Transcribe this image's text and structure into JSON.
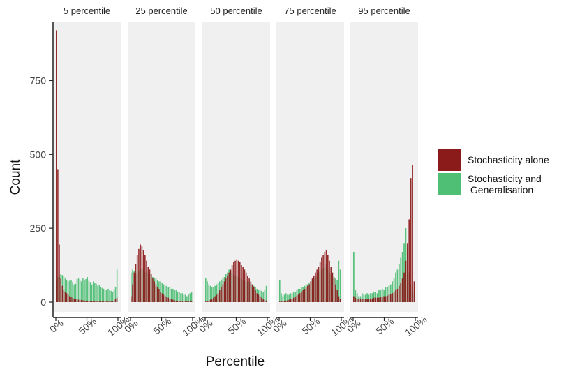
{
  "chart_data": {
    "type": "bar",
    "layout": "faceted histogram (5 panels, overlaid series)",
    "ylabel": "Count",
    "xlabel": "Percentile",
    "ylim": [
      0,
      940
    ],
    "y_ticks": [
      0,
      250,
      500,
      750
    ],
    "x_tick_labels": [
      "0%",
      "50%",
      "100%"
    ],
    "grid": "off",
    "panel_background": "#f0f0f0",
    "legend_position": "right",
    "series": [
      {
        "name": "Stochasticity alone",
        "color": "#8b1a1a"
      },
      {
        "name": "Stochasticity and\n Generalisation",
        "color": "#4fbf76"
      }
    ],
    "panels": [
      {
        "title": "5 percentile",
        "Stochasticity alone": [
          920,
          450,
          195,
          80,
          55,
          40,
          35,
          30,
          25,
          20,
          18,
          15,
          12,
          10,
          10,
          8,
          8,
          7,
          6,
          5,
          5,
          4,
          4,
          3,
          3,
          3,
          2,
          2,
          2,
          2,
          2,
          2,
          2,
          2,
          2,
          2,
          2,
          2,
          2,
          5,
          10,
          15
        ],
        "Stochasticity and\n Generalisation": [
          70,
          85,
          90,
          95,
          92,
          88,
          80,
          75,
          70,
          72,
          75,
          68,
          60,
          62,
          78,
          80,
          72,
          70,
          80,
          75,
          78,
          85,
          72,
          68,
          60,
          70,
          65,
          62,
          55,
          58,
          50,
          48,
          45,
          40,
          42,
          45,
          40,
          38,
          35,
          40,
          50,
          110
        ]
      },
      {
        "title": "25  percentile",
        "Stochasticity alone": [
          20,
          60,
          100,
          130,
          160,
          180,
          195,
          190,
          175,
          160,
          140,
          120,
          110,
          95,
          80,
          70,
          60,
          50,
          45,
          35,
          30,
          25,
          20,
          18,
          15,
          12,
          10,
          8,
          6,
          5,
          4,
          3,
          3,
          2,
          2,
          2,
          2,
          2,
          2,
          2
        ],
        "Stochasticity and\n Generalisation": [
          100,
          110,
          105,
          95,
          100,
          105,
          110,
          115,
          110,
          100,
          105,
          100,
          95,
          90,
          85,
          80,
          80,
          75,
          70,
          70,
          65,
          60,
          55,
          55,
          50,
          50,
          45,
          45,
          40,
          40,
          35,
          35,
          30,
          30,
          25,
          25,
          20,
          25,
          30,
          35
        ]
      },
      {
        "title": "50 percentile",
        "Stochasticity alone": [
          2,
          3,
          5,
          8,
          10,
          15,
          20,
          25,
          30,
          40,
          50,
          60,
          70,
          80,
          90,
          100,
          110,
          125,
          135,
          140,
          145,
          140,
          135,
          125,
          120,
          110,
          100,
          90,
          80,
          70,
          60,
          50,
          40,
          30,
          25,
          20,
          15,
          10,
          8,
          5
        ],
        "Stochasticity and\n Generalisation": [
          80,
          70,
          60,
          55,
          50,
          50,
          55,
          60,
          65,
          70,
          75,
          80,
          85,
          95,
          100,
          110,
          105,
          100,
          95,
          90,
          88,
          85,
          80,
          78,
          75,
          72,
          70,
          68,
          70,
          65,
          60,
          55,
          50,
          45,
          40,
          40,
          38,
          35,
          40,
          55
        ]
      },
      {
        "title": "75 percentile",
        "Stochasticity alone": [
          2,
          2,
          3,
          4,
          5,
          6,
          8,
          10,
          12,
          15,
          18,
          22,
          25,
          30,
          35,
          40,
          45,
          50,
          55,
          60,
          70,
          80,
          90,
          100,
          110,
          120,
          135,
          150,
          160,
          170,
          175,
          160,
          140,
          120,
          100,
          80,
          60,
          40,
          20,
          10
        ],
        "Stochasticity and\n Generalisation": [
          75,
          30,
          20,
          25,
          30,
          25,
          25,
          30,
          30,
          35,
          35,
          40,
          45,
          45,
          50,
          50,
          55,
          60,
          60,
          65,
          70,
          75,
          80,
          85,
          90,
          100,
          105,
          110,
          115,
          120,
          130,
          110,
          100,
          95,
          90,
          85,
          80,
          75,
          140,
          110
        ]
      },
      {
        "title": "95 percentile",
        "Stochasticity alone": [
          20,
          15,
          12,
          10,
          10,
          10,
          10,
          10,
          10,
          12,
          12,
          12,
          15,
          15,
          15,
          15,
          18,
          18,
          20,
          20,
          22,
          25,
          28,
          30,
          35,
          40,
          45,
          55,
          65,
          80,
          100,
          140,
          200,
          280,
          420,
          465,
          70
        ],
        "Stochasticity and\n Generalisation": [
          170,
          40,
          30,
          20,
          20,
          30,
          25,
          25,
          30,
          25,
          30,
          30,
          35,
          35,
          30,
          40,
          40,
          45,
          40,
          50,
          50,
          55,
          60,
          70,
          80,
          100,
          110,
          130,
          150,
          170,
          200,
          250,
          180,
          100,
          60,
          40,
          30
        ]
      }
    ]
  }
}
